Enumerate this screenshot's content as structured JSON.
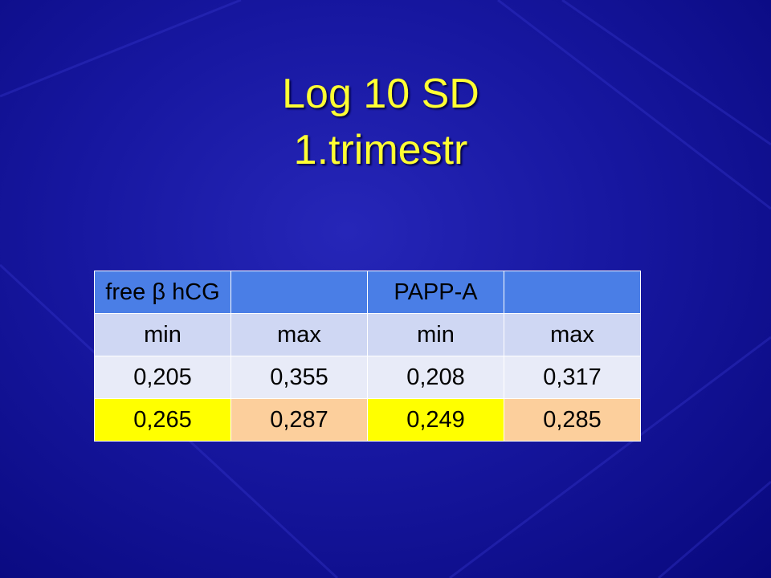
{
  "title": {
    "line1": "Log 10 SD",
    "line2": "1.trimestr"
  },
  "table": {
    "header": [
      "free β hCG",
      "PAPP-A"
    ],
    "subheader": [
      "min",
      "max",
      "min",
      "max"
    ],
    "rows": [
      [
        "0,205",
        "0,355",
        "0,208",
        "0,317"
      ],
      [
        "0,265",
        "0,287",
        "0,249",
        "0,285"
      ]
    ]
  }
}
